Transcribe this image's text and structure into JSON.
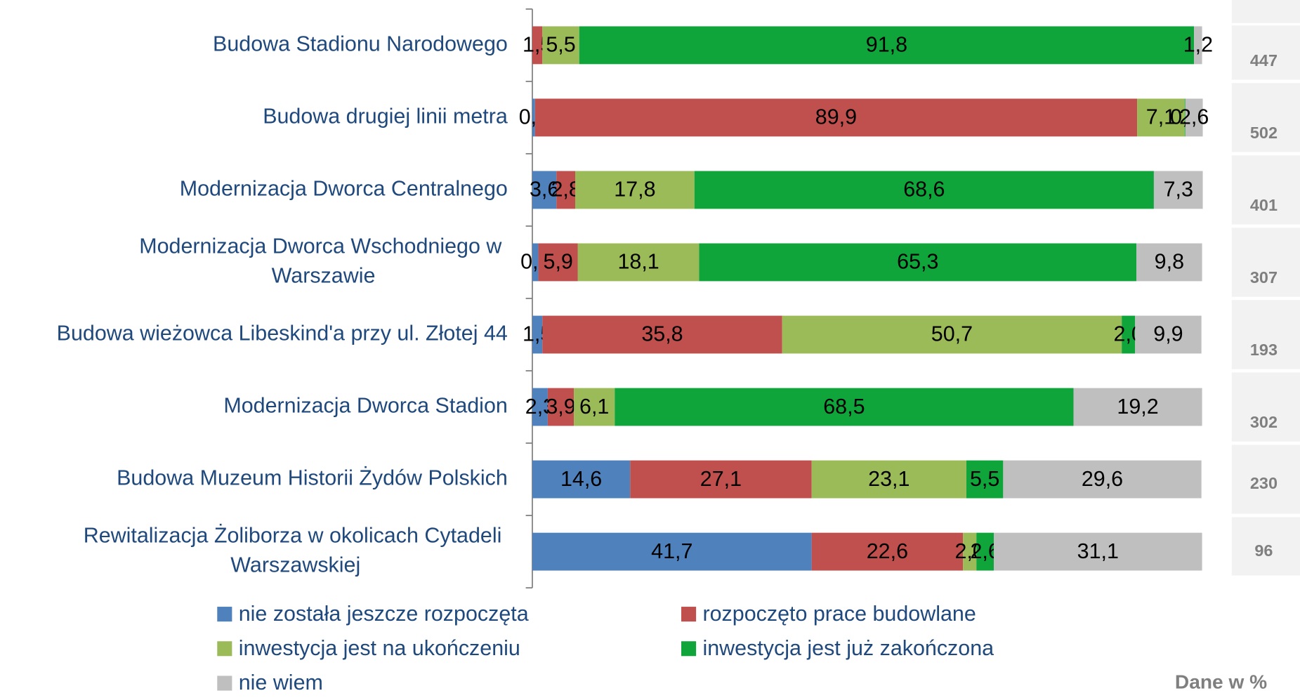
{
  "chart_data": {
    "type": "stacked-bar-horizontal",
    "categories": [
      "Budowa Stadionu Narodowego",
      "Budowa drugiej linii metra",
      "Modernizacja Dworca Centralnego",
      "Modernizacja Dworca Wschodniego w\nWarszawie",
      "Budowa wieżowca Libeskind'a przy ul. Złotej 44",
      "Modernizacja Dworca Stadion",
      "Budowa Muzeum Historii Żydów Polskich",
      "Rewitalizacja Żoliborza w okolicach Cytadeli\nWarszawskiej"
    ],
    "xlim": [
      0,
      100
    ],
    "series": [
      {
        "name": "nie została jeszcze rozpoczęta",
        "color": "#4f81bd",
        "values": [
          null,
          0.4,
          3.6,
          0.9,
          1.5,
          2.3,
          14.6,
          41.7
        ],
        "value_labels": [
          null,
          "0,4",
          "3,6",
          "0,9",
          "1,5",
          "2,3",
          "14,6",
          "41,7"
        ]
      },
      {
        "name": "rozpoczęto prace budowlane",
        "color": "#c0504d",
        "values": [
          1.5,
          89.9,
          2.8,
          5.9,
          35.8,
          3.9,
          27.1,
          22.6
        ],
        "value_labels": [
          "1,5",
          "89,9",
          "2,8",
          "5,9",
          "35,8",
          "3,9",
          "27,1",
          "22,6"
        ]
      },
      {
        "name": "inwestycja jest na ukończeniu",
        "color": "#9bbb59",
        "values": [
          5.5,
          7.1,
          17.8,
          18.1,
          50.7,
          6.1,
          23.1,
          2.0
        ],
        "value_labels": [
          "5,5",
          "7,1",
          "17,8",
          "18,1",
          "50,7",
          "6,1",
          "23,1",
          "2,0"
        ]
      },
      {
        "name": "inwestycja jest już zakończona",
        "color": "#10a53b",
        "values": [
          91.8,
          0.1,
          68.6,
          65.3,
          2.0,
          68.5,
          5.5,
          2.6
        ],
        "value_labels": [
          "91,8",
          "0,1",
          "68,6",
          "65,3",
          "2,0",
          "68,5",
          "5,5",
          "2,6"
        ]
      },
      {
        "name": "nie wiem",
        "color": "#bfbfbf",
        "values": [
          1.2,
          2.6,
          7.3,
          9.8,
          9.9,
          19.2,
          29.6,
          31.1
        ],
        "value_labels": [
          "1,2",
          "2,6",
          "7,3",
          "9,8",
          "9,9",
          "19,2",
          "29,6",
          "31,1"
        ]
      }
    ],
    "sample_sizes": [
      447,
      502,
      401,
      307,
      193,
      302,
      230,
      96
    ],
    "note": "Dane w %"
  }
}
